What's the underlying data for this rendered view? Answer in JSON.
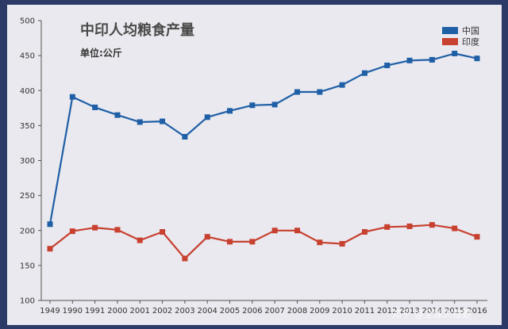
{
  "chart_data": {
    "type": "line",
    "title": "中印人均粮食产量",
    "subtitle": "单位:公斤",
    "categories": [
      "1949",
      "1990",
      "1991",
      "2000",
      "2001",
      "2002",
      "2003",
      "2004",
      "2005",
      "2006",
      "2007",
      "2008",
      "2009",
      "2010",
      "2011",
      "2012",
      "2013",
      "2014",
      "2015",
      "2016"
    ],
    "series": [
      {
        "name": "中国",
        "color": "#1f5fa6",
        "values": [
          209,
          391,
          376,
          365,
          355,
          356,
          334,
          362,
          371,
          379,
          380,
          398,
          398,
          408,
          425,
          436,
          443,
          444,
          453,
          446
        ]
      },
      {
        "name": "印度",
        "color": "#c8402f",
        "values": [
          174,
          199,
          204,
          201,
          186,
          198,
          160,
          191,
          184,
          184,
          200,
          200,
          183,
          181,
          198,
          205,
          206,
          208,
          203,
          191
        ]
      }
    ],
    "ylim": [
      100,
      500
    ],
    "yticks": [
      100,
      150,
      200,
      250,
      300,
      350,
      400,
      450,
      500
    ],
    "legend_position": "top-right",
    "grid": false
  },
  "watermark": "知乎 @全球大视野"
}
